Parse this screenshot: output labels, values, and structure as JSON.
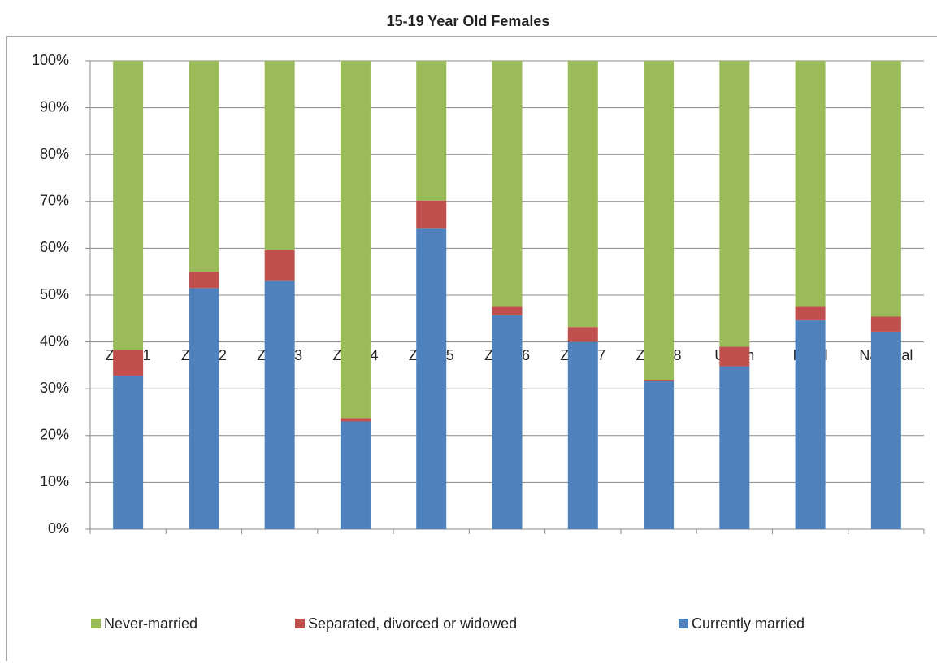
{
  "chart_data": {
    "type": "stacked_bar",
    "title": "15-19 Year Old Females",
    "categories": [
      "Zone 1",
      "Zone 2",
      "Zone 3",
      "Zone 4",
      "Zone 5",
      "Zone 6",
      "Zone 7",
      "Zone 8",
      "Urban",
      "Rural",
      "National"
    ],
    "series": [
      {
        "name": "Never-married",
        "color": "#9bbb59",
        "values": [
          61.7,
          45,
          40.3,
          76.3,
          29.8,
          52.5,
          56.8,
          68.1,
          61,
          52.5,
          54.6
        ]
      },
      {
        "name": "Separated, divorced or widowed",
        "color": "#c0504d",
        "values": [
          5.5,
          3.5,
          6.7,
          0.7,
          6,
          1.8,
          3.2,
          0.3,
          4.2,
          2.9,
          3.2
        ]
      },
      {
        "name": "Currently married",
        "color": "#4f81bd",
        "values": [
          32.8,
          51.5,
          53,
          23,
          64.2,
          45.7,
          40,
          31.6,
          34.8,
          44.6,
          42.2
        ]
      }
    ],
    "ylim": [
      0,
      100
    ],
    "yticks": [
      {
        "value": 0,
        "label": "0%"
      },
      {
        "value": 10,
        "label": "10%"
      },
      {
        "value": 20,
        "label": "20%"
      },
      {
        "value": 30,
        "label": "30%"
      },
      {
        "value": 40,
        "label": "40%"
      },
      {
        "value": 50,
        "label": "50%"
      },
      {
        "value": 60,
        "label": "60%"
      },
      {
        "value": 70,
        "label": "70%"
      },
      {
        "value": 80,
        "label": "80%"
      },
      {
        "value": 90,
        "label": "90%"
      },
      {
        "value": 100,
        "label": "100%"
      }
    ],
    "grid": true,
    "legend": "bottom"
  }
}
